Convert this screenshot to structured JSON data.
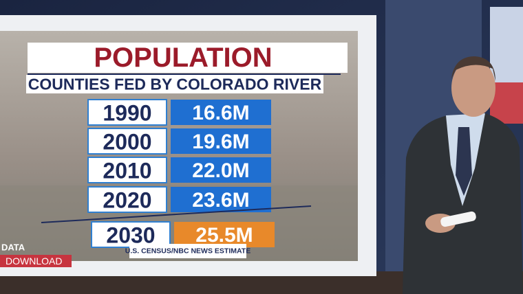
{
  "board": {
    "title": "POPULATION",
    "subtitle": "COUNTIES FED BY COLORADO RIVER",
    "rows": [
      {
        "year": "1990",
        "value": "16.6M"
      },
      {
        "year": "2000",
        "value": "19.6M"
      },
      {
        "year": "2010",
        "value": "22.0M"
      },
      {
        "year": "2020",
        "value": "23.6M"
      },
      {
        "year": "2030",
        "value": "25.5M"
      }
    ],
    "source": "U.S. CENSUS/NBC NEWS ESTIMATE",
    "logo": {
      "top": "DATA",
      "bottom": "DOWNLOAD"
    }
  }
}
